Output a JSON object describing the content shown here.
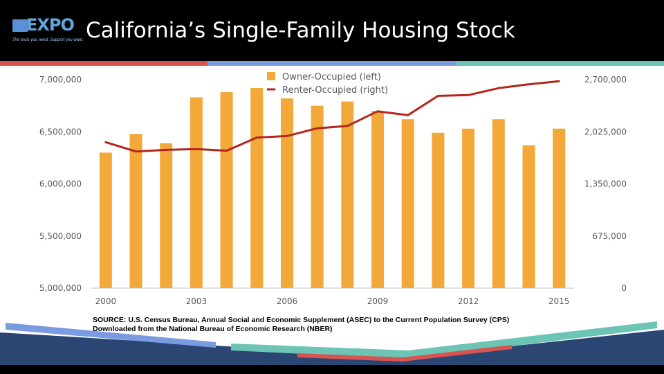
{
  "header": {
    "logo_text": "EXPO",
    "logo_tagline": "The tools you need. Support you want.",
    "title": "California’s Single-Family Housing Stock"
  },
  "colors": {
    "header_bg": "#000000",
    "stripe_red": "#d9534f",
    "stripe_blue": "#7a9be0",
    "stripe_teal": "#6cc4b4",
    "bar": "#f3a939",
    "line": "#b3261e",
    "footer_navy": "#2c4674"
  },
  "chart_data": {
    "type": "bar+line",
    "x_tick_labels": [
      "2000",
      "2003",
      "2006",
      "2009",
      "2012",
      "2015"
    ],
    "x": [
      2000,
      2001,
      2002,
      2003,
      2004,
      2005,
      2006,
      2007,
      2008,
      2009,
      2010,
      2011,
      2012,
      2013,
      2014,
      2015
    ],
    "y_left_ticks": [
      "7,000,000",
      "6,500,000",
      "6,000,000",
      "5,500,000",
      "5,000,000"
    ],
    "y_right_ticks": [
      "2,700,000",
      "2,025,000",
      "1,350,000",
      "675,000",
      "0"
    ],
    "y_left_lim": [
      5000000,
      7000000
    ],
    "y_right_lim": [
      0,
      2700000
    ],
    "legend_position": "top-center",
    "series": [
      {
        "name": "Owner-Occupied (left)",
        "type": "bar",
        "axis": "left",
        "values": [
          6300000,
          6480000,
          6390000,
          6830000,
          6880000,
          6920000,
          6820000,
          6750000,
          6790000,
          6700000,
          6620000,
          6490000,
          6530000,
          6620000,
          6370000,
          6530000
        ]
      },
      {
        "name": "Renter-Occupied (right)",
        "type": "line",
        "axis": "right",
        "values": [
          1890000,
          1770000,
          1790000,
          1800000,
          1780000,
          1950000,
          1970000,
          2070000,
          2100000,
          2290000,
          2240000,
          2490000,
          2500000,
          2590000,
          2640000,
          2680000
        ]
      }
    ]
  },
  "source": {
    "line1": "SOURCE: U.S. Census Bureau, Annual Social and Economic Supplement (ASEC) to the Current Population Survey (CPS)",
    "line2": "Downloaded from the National Bureau of Economic Research (NBER)"
  }
}
